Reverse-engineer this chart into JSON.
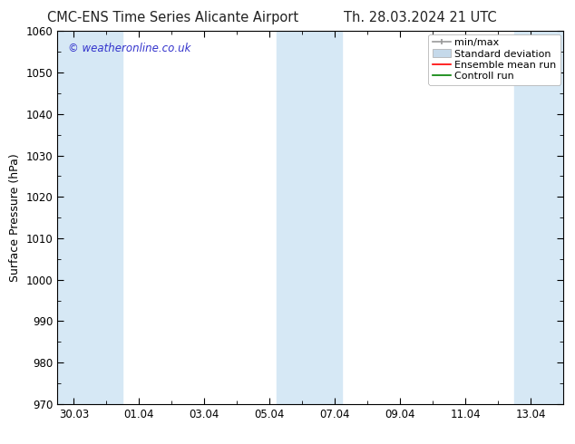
{
  "title_left": "CMC-ENS Time Series Alicante Airport",
  "title_right": "Th. 28.03.2024 21 UTC",
  "ylabel": "Surface Pressure (hPa)",
  "ylim": [
    970,
    1060
  ],
  "yticks": [
    970,
    980,
    990,
    1000,
    1010,
    1020,
    1030,
    1040,
    1050,
    1060
  ],
  "x_tick_labels": [
    "30.03",
    "01.04",
    "03.04",
    "05.04",
    "07.04",
    "09.04",
    "11.04",
    "13.04"
  ],
  "x_tick_positions": [
    0,
    2,
    4,
    6,
    8,
    10,
    12,
    14
  ],
  "xlim": [
    -0.5,
    15.0
  ],
  "watermark": "© weatheronline.co.uk",
  "watermark_color": "#3333cc",
  "bg_color": "#ffffff",
  "plot_bg_color": "#ffffff",
  "shaded_bands": [
    {
      "xmin": -0.5,
      "xmax": 1.5,
      "color": "#d6e8f5"
    },
    {
      "xmin": 6.2,
      "xmax": 8.2,
      "color": "#d6e8f5"
    },
    {
      "xmin": 13.5,
      "xmax": 15.0,
      "color": "#d6e8f5"
    }
  ],
  "legend_items": [
    {
      "label": "min/max",
      "color": "#999999",
      "type": "errorbar"
    },
    {
      "label": "Standard deviation",
      "color": "#c5d9ea",
      "type": "band"
    },
    {
      "label": "Ensemble mean run",
      "color": "#ff0000",
      "type": "line"
    },
    {
      "label": "Controll run",
      "color": "#008000",
      "type": "line"
    }
  ],
  "title_fontsize": 10.5,
  "axis_label_fontsize": 9,
  "tick_fontsize": 8.5,
  "legend_fontsize": 8,
  "spine_color": "#000000"
}
